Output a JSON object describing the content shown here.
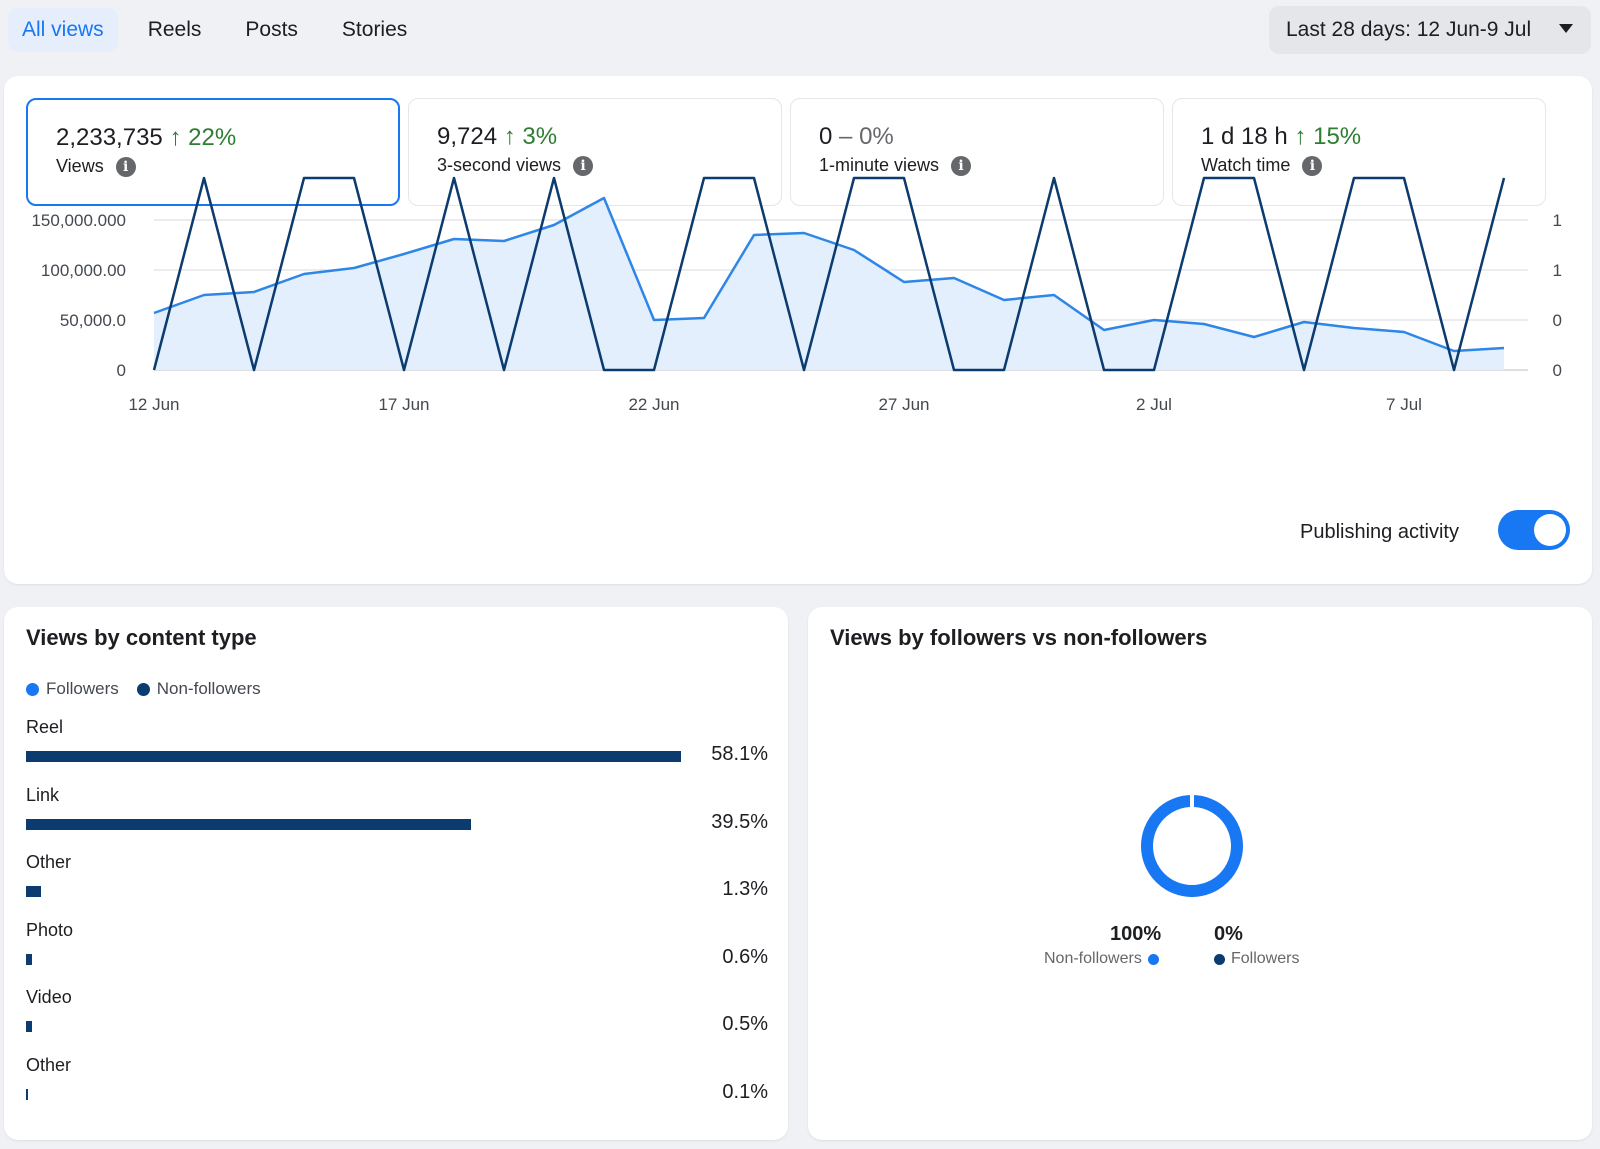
{
  "tabs": [
    {
      "label": "All views"
    },
    {
      "label": "Reels"
    },
    {
      "label": "Posts"
    },
    {
      "label": "Stories"
    }
  ],
  "date_range": {
    "label": "Last 28 days: 12 Jun-9 Jul"
  },
  "metrics": [
    {
      "value": "2,233,735",
      "change_arrow": "↑",
      "change": "22%",
      "label": "Views"
    },
    {
      "value": "9,724",
      "change_arrow": "↑",
      "change": "3%",
      "label": "3-second views"
    },
    {
      "value": "0",
      "change_arrow": "–",
      "change": "0%",
      "label": "1-minute views"
    },
    {
      "value": "1 d 18 h",
      "change_arrow": "↑",
      "change": "15%",
      "label": "Watch time"
    }
  ],
  "colors": {
    "accent": "#1877f2",
    "views_line": "#2d86e8",
    "views_area": "#e3effc",
    "publishing_line": "#0b3b6f",
    "positive": "#2e7d32",
    "followers": "#1877f2",
    "non_followers": "#0b3b6f"
  },
  "chart_data": {
    "type": "line",
    "x": [
      "12 Jun",
      "13 Jun",
      "14 Jun",
      "15 Jun",
      "16 Jun",
      "17 Jun",
      "18 Jun",
      "19 Jun",
      "20 Jun",
      "21 Jun",
      "22 Jun",
      "23 Jun",
      "24 Jun",
      "25 Jun",
      "26 Jun",
      "27 Jun",
      "28 Jun",
      "29 Jun",
      "30 Jun",
      "1 Jul",
      "2 Jul",
      "3 Jul",
      "4 Jul",
      "5 Jul",
      "6 Jul",
      "7 Jul",
      "8 Jul",
      "9 Jul"
    ],
    "x_tick_labels": [
      "12 Jun",
      "17 Jun",
      "22 Jun",
      "27 Jun",
      "2 Jul",
      "7 Jul"
    ],
    "y_left_ticks": [
      "0",
      "50,000.0",
      "100,000.00",
      "150,000.000"
    ],
    "y_left_range": [
      0,
      170000
    ],
    "y_right_ticks": [
      "0",
      "0",
      "1",
      "1"
    ],
    "y_right_range": [
      0,
      1.14
    ],
    "grid": true,
    "series": [
      {
        "axis": "left",
        "area": true,
        "values": [
          57000,
          75000,
          78000,
          96000,
          102000,
          116000,
          131000,
          129000,
          145000,
          172000,
          50000,
          52000,
          135000,
          137000,
          120000,
          88000,
          92000,
          70000,
          75000,
          40000,
          50000,
          46000,
          33000,
          48000,
          42000,
          38000,
          19000,
          22000
        ]
      },
      {
        "axis": "right",
        "area": false,
        "values": [
          0,
          1,
          0,
          1,
          1,
          0,
          1,
          0,
          1,
          0,
          0,
          1,
          1,
          0,
          1,
          1,
          0,
          0,
          1,
          0,
          0,
          1,
          1,
          0,
          1,
          1,
          0,
          1
        ]
      }
    ]
  },
  "publishing_activity": {
    "label": "Publishing activity",
    "on": true
  },
  "content_type": {
    "title": "Views by content type",
    "legend": [
      {
        "label": "Followers"
      },
      {
        "label": "Non-followers"
      }
    ],
    "rows": [
      {
        "label": "Reel",
        "pct": "58.1%",
        "value": 58.1
      },
      {
        "label": "Link",
        "pct": "39.5%",
        "value": 39.5
      },
      {
        "label": "Other",
        "pct": "1.3%",
        "value": 1.3
      },
      {
        "label": "Photo",
        "pct": "0.6%",
        "value": 0.6
      },
      {
        "label": "Video",
        "pct": "0.5%",
        "value": 0.5
      },
      {
        "label": "Other",
        "pct": "0.1%",
        "value": 0.1
      }
    ]
  },
  "followers": {
    "title": "Views by followers vs non-followers",
    "non_followers": {
      "pct": "100%",
      "label": "Non-followers",
      "value": 100
    },
    "followers": {
      "pct": "0%",
      "label": "Followers",
      "value": 0
    }
  }
}
